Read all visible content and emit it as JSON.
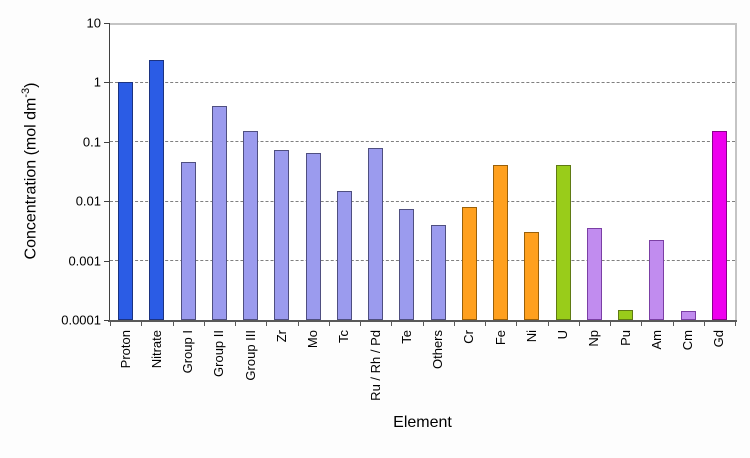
{
  "chart_data": {
    "type": "bar",
    "title": "",
    "xlabel": "Element",
    "ylabel": {
      "prefix": "Concentration (mol dm",
      "superscript": "-3",
      "suffix": ")"
    },
    "y_scale": "log",
    "ylim": [
      0.0001,
      10
    ],
    "y_ticks": [
      "10",
      "1",
      "0.1",
      "0.01",
      "0.001",
      "0.0001"
    ],
    "grid": "horizontal-dashed-at-decades",
    "legend": "none",
    "categories": [
      "Proton",
      "Nitrate",
      "Group I",
      "Group II",
      "Group III",
      "Zr",
      "Mo",
      "Tc",
      "Ru / Rh / Pd",
      "Te",
      "Others",
      "Cr",
      "Fe",
      "Ni",
      "U",
      "Np",
      "Pu",
      "Am",
      "Cm",
      "Gd"
    ],
    "values": [
      1.0,
      2.4,
      0.045,
      0.4,
      0.15,
      0.072,
      0.065,
      0.015,
      0.078,
      0.0075,
      0.004,
      0.008,
      0.04,
      0.003,
      0.04,
      0.0035,
      0.00015,
      0.0022,
      0.00014,
      0.15
    ],
    "bar_color_groups": [
      "blue",
      "blue",
      "periwinkle",
      "periwinkle",
      "periwinkle",
      "periwinkle",
      "periwinkle",
      "periwinkle",
      "periwinkle",
      "periwinkle",
      "periwinkle",
      "orange",
      "orange",
      "orange",
      "green",
      "violet",
      "green",
      "violet",
      "violet",
      "magenta"
    ],
    "colors": {
      "blue": {
        "fill": "#2b5ce5",
        "stroke": "#1c3380"
      },
      "periwinkle": {
        "fill": "#9b9bee",
        "stroke": "#4f4f80"
      },
      "orange": {
        "fill": "#ffa01e",
        "stroke": "#99600a"
      },
      "green": {
        "fill": "#99cc1a",
        "stroke": "#5f7a14"
      },
      "violet": {
        "fill": "#c18cef",
        "stroke": "#7b3fa5"
      },
      "magenta": {
        "fill": "#ee00ee",
        "stroke": "#8a008a"
      }
    }
  }
}
